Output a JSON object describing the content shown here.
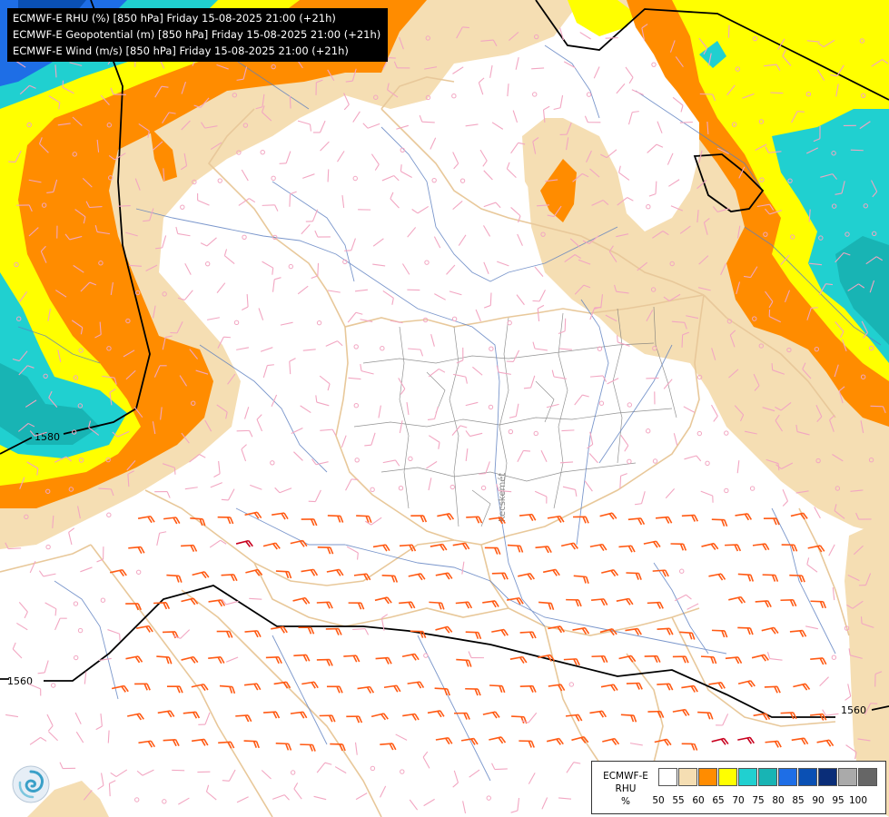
{
  "header": {
    "lines": [
      "ECMWF-E RHU (%) [850 hPa] Friday 15-08-2025 21:00 (+21h)",
      "ECMWF-E Geopotential (m) [850 hPa] Friday 15-08-2025 21:00 (+21h)",
      "ECMWF-E Wind (m/s) [850 hPa] Friday 15-08-2025 21:00 (+21h)"
    ]
  },
  "map": {
    "contour_labels": [
      "1580",
      "1560",
      "1560"
    ],
    "city_label": "Kecskemét",
    "colors": {
      "c50": "#ffffff",
      "c55": "#f5deb3",
      "c60": "#ff8c00",
      "c65": "#ffff00",
      "c70": "#20d0d0",
      "c75": "#18b4b4",
      "c80": "#1e6ee6",
      "c85": "#0a50b4",
      "c90": "#0a2d78",
      "c95": "#aaaaaa",
      "c100": "#666666",
      "border": "#e8c89a",
      "river": "#5a7dbf",
      "wind_light": "#f2a6c2",
      "wind_strong": "#ff5a14",
      "wind_max": "#c8001e",
      "contour": "#000000"
    }
  },
  "legend": {
    "label_lines": [
      "ECMWF-E",
      "RHU",
      "%"
    ],
    "ticks": [
      "50",
      "55",
      "60",
      "65",
      "70",
      "75",
      "80",
      "85",
      "90",
      "95",
      "100"
    ],
    "colors": [
      "#ffffff",
      "#f5deb3",
      "#ff8c00",
      "#ffff00",
      "#20d0d0",
      "#18b4b4",
      "#1e6ee6",
      "#0a50b4",
      "#0a2d78",
      "#aaaaaa",
      "#666666"
    ]
  },
  "logo": {
    "icon": "ecmwf-swirl-logo-icon"
  }
}
